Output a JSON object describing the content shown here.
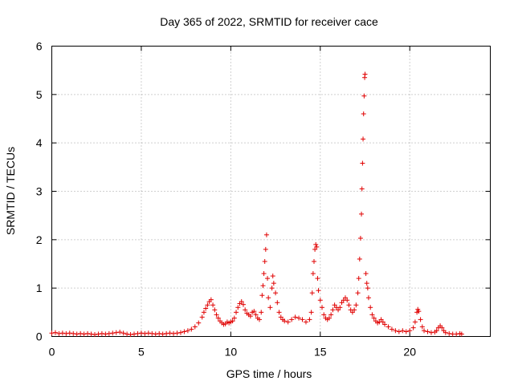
{
  "chart_data": {
    "type": "scatter",
    "title": "Day 365 of 2022, SRMTID for receiver cace",
    "xlabel": "GPS time / hours",
    "ylabel": "SRMTID / TECUs",
    "xlim": [
      0,
      24.5
    ],
    "ylim": [
      0,
      6
    ],
    "x_ticks": [
      0,
      5,
      10,
      15,
      20
    ],
    "x_tick_labels": [
      "0",
      "5",
      "10",
      "15",
      "20"
    ],
    "y_ticks": [
      0,
      1,
      2,
      3,
      4,
      5,
      6
    ],
    "y_tick_labels": [
      "0",
      "1",
      "2",
      "3",
      "4",
      "5",
      "6"
    ],
    "grid": true,
    "marker": "+",
    "color": "#e00000",
    "series": [
      {
        "name": "SRMTID",
        "points": [
          [
            0.0,
            0.07
          ],
          [
            0.2,
            0.08
          ],
          [
            0.4,
            0.06
          ],
          [
            0.6,
            0.07
          ],
          [
            0.8,
            0.06
          ],
          [
            1.0,
            0.07
          ],
          [
            1.2,
            0.06
          ],
          [
            1.4,
            0.05
          ],
          [
            1.6,
            0.06
          ],
          [
            1.8,
            0.05
          ],
          [
            2.0,
            0.06
          ],
          [
            2.2,
            0.05
          ],
          [
            2.4,
            0.04
          ],
          [
            2.6,
            0.05
          ],
          [
            2.8,
            0.06
          ],
          [
            3.0,
            0.05
          ],
          [
            3.2,
            0.06
          ],
          [
            3.4,
            0.07
          ],
          [
            3.6,
            0.08
          ],
          [
            3.8,
            0.09
          ],
          [
            4.0,
            0.07
          ],
          [
            4.2,
            0.05
          ],
          [
            4.4,
            0.04
          ],
          [
            4.6,
            0.05
          ],
          [
            4.8,
            0.06
          ],
          [
            5.0,
            0.07
          ],
          [
            5.2,
            0.06
          ],
          [
            5.4,
            0.07
          ],
          [
            5.6,
            0.06
          ],
          [
            5.8,
            0.05
          ],
          [
            6.0,
            0.06
          ],
          [
            6.2,
            0.05
          ],
          [
            6.4,
            0.06
          ],
          [
            6.6,
            0.07
          ],
          [
            6.8,
            0.06
          ],
          [
            7.0,
            0.07
          ],
          [
            7.2,
            0.08
          ],
          [
            7.4,
            0.1
          ],
          [
            7.6,
            0.12
          ],
          [
            7.8,
            0.15
          ],
          [
            8.0,
            0.2
          ],
          [
            8.2,
            0.28
          ],
          [
            8.4,
            0.4
          ],
          [
            8.5,
            0.5
          ],
          [
            8.6,
            0.58
          ],
          [
            8.7,
            0.65
          ],
          [
            8.8,
            0.72
          ],
          [
            8.9,
            0.76
          ],
          [
            9.0,
            0.65
          ],
          [
            9.1,
            0.55
          ],
          [
            9.2,
            0.45
          ],
          [
            9.3,
            0.38
          ],
          [
            9.4,
            0.32
          ],
          [
            9.5,
            0.28
          ],
          [
            9.6,
            0.25
          ],
          [
            9.7,
            0.26
          ],
          [
            9.8,
            0.3
          ],
          [
            9.9,
            0.28
          ],
          [
            10.0,
            0.3
          ],
          [
            10.1,
            0.32
          ],
          [
            10.2,
            0.38
          ],
          [
            10.3,
            0.5
          ],
          [
            10.4,
            0.6
          ],
          [
            10.5,
            0.68
          ],
          [
            10.6,
            0.72
          ],
          [
            10.7,
            0.66
          ],
          [
            10.8,
            0.55
          ],
          [
            10.9,
            0.48
          ],
          [
            11.0,
            0.45
          ],
          [
            11.1,
            0.42
          ],
          [
            11.2,
            0.5
          ],
          [
            11.3,
            0.52
          ],
          [
            11.4,
            0.45
          ],
          [
            11.5,
            0.38
          ],
          [
            11.6,
            0.35
          ],
          [
            11.7,
            0.5
          ],
          [
            11.75,
            0.85
          ],
          [
            11.8,
            1.05
          ],
          [
            11.85,
            1.3
          ],
          [
            11.9,
            1.55
          ],
          [
            11.95,
            1.8
          ],
          [
            12.0,
            2.1
          ],
          [
            12.05,
            1.2
          ],
          [
            12.1,
            0.8
          ],
          [
            12.2,
            0.6
          ],
          [
            12.3,
            1.0
          ],
          [
            12.35,
            1.25
          ],
          [
            12.4,
            1.1
          ],
          [
            12.5,
            0.9
          ],
          [
            12.6,
            0.7
          ],
          [
            12.7,
            0.5
          ],
          [
            12.8,
            0.4
          ],
          [
            12.9,
            0.35
          ],
          [
            13.0,
            0.32
          ],
          [
            13.2,
            0.3
          ],
          [
            13.4,
            0.35
          ],
          [
            13.6,
            0.4
          ],
          [
            13.8,
            0.38
          ],
          [
            14.0,
            0.35
          ],
          [
            14.2,
            0.3
          ],
          [
            14.4,
            0.35
          ],
          [
            14.5,
            0.5
          ],
          [
            14.55,
            0.9
          ],
          [
            14.6,
            1.3
          ],
          [
            14.65,
            1.55
          ],
          [
            14.7,
            1.8
          ],
          [
            14.75,
            1.9
          ],
          [
            14.8,
            1.85
          ],
          [
            14.85,
            1.2
          ],
          [
            14.9,
            0.95
          ],
          [
            15.0,
            0.75
          ],
          [
            15.1,
            0.6
          ],
          [
            15.2,
            0.45
          ],
          [
            15.3,
            0.38
          ],
          [
            15.4,
            0.35
          ],
          [
            15.5,
            0.38
          ],
          [
            15.6,
            0.45
          ],
          [
            15.7,
            0.55
          ],
          [
            15.8,
            0.65
          ],
          [
            15.9,
            0.6
          ],
          [
            16.0,
            0.55
          ],
          [
            16.1,
            0.6
          ],
          [
            16.2,
            0.7
          ],
          [
            16.3,
            0.75
          ],
          [
            16.4,
            0.8
          ],
          [
            16.5,
            0.75
          ],
          [
            16.6,
            0.65
          ],
          [
            16.7,
            0.55
          ],
          [
            16.8,
            0.5
          ],
          [
            16.9,
            0.55
          ],
          [
            17.0,
            0.65
          ],
          [
            17.1,
            0.9
          ],
          [
            17.15,
            1.2
          ],
          [
            17.2,
            1.6
          ],
          [
            17.25,
            2.03
          ],
          [
            17.3,
            2.53
          ],
          [
            17.33,
            3.05
          ],
          [
            17.36,
            3.58
          ],
          [
            17.39,
            4.08
          ],
          [
            17.42,
            4.6
          ],
          [
            17.45,
            4.97
          ],
          [
            17.48,
            5.35
          ],
          [
            17.5,
            5.42
          ],
          [
            17.55,
            1.3
          ],
          [
            17.6,
            1.1
          ],
          [
            17.65,
            1.0
          ],
          [
            17.7,
            0.8
          ],
          [
            17.8,
            0.6
          ],
          [
            17.9,
            0.45
          ],
          [
            18.0,
            0.38
          ],
          [
            18.1,
            0.32
          ],
          [
            18.2,
            0.28
          ],
          [
            18.3,
            0.3
          ],
          [
            18.4,
            0.35
          ],
          [
            18.5,
            0.3
          ],
          [
            18.6,
            0.25
          ],
          [
            18.8,
            0.2
          ],
          [
            19.0,
            0.15
          ],
          [
            19.2,
            0.12
          ],
          [
            19.4,
            0.1
          ],
          [
            19.6,
            0.12
          ],
          [
            19.8,
            0.1
          ],
          [
            20.0,
            0.12
          ],
          [
            20.2,
            0.18
          ],
          [
            20.3,
            0.3
          ],
          [
            20.4,
            0.5
          ],
          [
            20.45,
            0.56
          ],
          [
            20.5,
            0.52
          ],
          [
            20.6,
            0.35
          ],
          [
            20.7,
            0.2
          ],
          [
            20.8,
            0.12
          ],
          [
            21.0,
            0.1
          ],
          [
            21.2,
            0.08
          ],
          [
            21.4,
            0.09
          ],
          [
            21.5,
            0.12
          ],
          [
            21.6,
            0.18
          ],
          [
            21.7,
            0.22
          ],
          [
            21.8,
            0.18
          ],
          [
            21.9,
            0.12
          ],
          [
            22.0,
            0.08
          ],
          [
            22.2,
            0.06
          ],
          [
            22.4,
            0.05
          ],
          [
            22.6,
            0.05
          ],
          [
            22.8,
            0.06
          ],
          [
            22.9,
            0.05
          ]
        ]
      }
    ]
  }
}
